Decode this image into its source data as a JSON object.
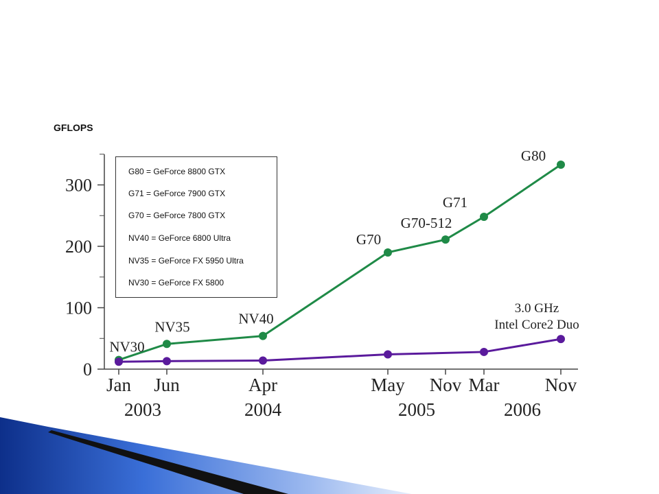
{
  "chart_data": {
    "type": "line",
    "ylabel": "GFLOPS",
    "ylim": [
      0,
      350
    ],
    "yticks": [
      0,
      100,
      200,
      300
    ],
    "grid": false,
    "x_tick_labels": [
      {
        "month": "Jan",
        "year": "2003",
        "x": 0
      },
      {
        "month": "Jun",
        "year": "",
        "x": 5
      },
      {
        "month": "Apr",
        "year": "2004",
        "x": 15
      },
      {
        "month": "May",
        "year": "2005",
        "x": 28
      },
      {
        "month": "Nov",
        "year": "",
        "x": 34
      },
      {
        "month": "Mar",
        "year": "2006",
        "x": 38
      },
      {
        "month": "Nov",
        "year": "",
        "x": 46
      }
    ],
    "series": [
      {
        "color": "#1f8a47",
        "points": [
          {
            "label": "NV30",
            "x": 0,
            "y": 15
          },
          {
            "label": "NV35",
            "x": 5,
            "y": 41
          },
          {
            "label": "NV40",
            "x": 15,
            "y": 54
          },
          {
            "label": "G70",
            "x": 28,
            "y": 190
          },
          {
            "label": "G70-512",
            "x": 34,
            "y": 211
          },
          {
            "label": "G71",
            "x": 38,
            "y": 248
          },
          {
            "label": "G80",
            "x": 46,
            "y": 333
          }
        ]
      },
      {
        "color": "#5a1a9c",
        "points": [
          {
            "label": "",
            "x": 0,
            "y": 12
          },
          {
            "label": "",
            "x": 5,
            "y": 13
          },
          {
            "label": "",
            "x": 15,
            "y": 14
          },
          {
            "label": "",
            "x": 28,
            "y": 24
          },
          {
            "label": "",
            "x": 38,
            "y": 28
          },
          {
            "label": "",
            "x": 46,
            "y": 49
          }
        ]
      }
    ],
    "annotations": [
      {
        "line1": "3.0 GHz",
        "line2": "Intel Core2 Duo"
      }
    ],
    "legend": {
      "position": "top-left",
      "entries": [
        "G80 = GeForce 8800 GTX",
        "G71 = GeForce 7900 GTX",
        "G70 = GeForce 7800 GTX",
        "NV40 = GeForce 6800 Ultra",
        "NV35 = GeForce FX 5950 Ultra",
        "NV30 = GeForce FX 5800"
      ]
    }
  },
  "theme": {
    "accent": "#3a6fd8",
    "accent_dark": "#0d2f8a",
    "ribbon": "#111111"
  }
}
